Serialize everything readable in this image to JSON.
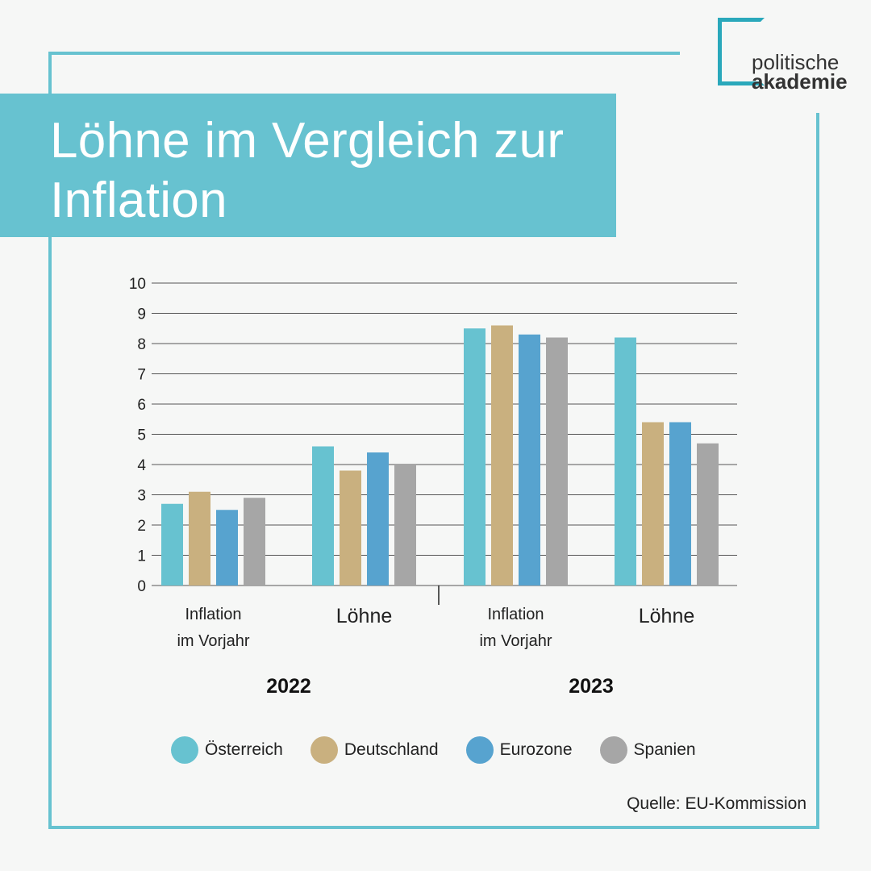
{
  "title": "Löhne im Vergleich zur Inflation",
  "logo": {
    "line1": "politische",
    "line2": "akademie"
  },
  "source": "Quelle: EU-Kommission",
  "colors": {
    "accent": "#67c2d0",
    "Österreich": "#67c2d0",
    "Deutschland": "#c9b07f",
    "Eurozone": "#57a3cf",
    "Spanien": "#a6a6a6"
  },
  "chart_data": {
    "type": "bar",
    "title": "Löhne im Vergleich zur Inflation",
    "xlabel": "",
    "ylabel": "",
    "ylim": [
      0,
      10
    ],
    "yticks": [
      0,
      1,
      2,
      3,
      4,
      5,
      6,
      7,
      8,
      9,
      10
    ],
    "grid": true,
    "legend_position": "bottom",
    "groups": [
      "2022",
      "2023"
    ],
    "categories": [
      {
        "label_lines": [
          "Inflation",
          "im Vorjahr"
        ],
        "year": "2022"
      },
      {
        "label_lines": [
          "Löhne"
        ],
        "year": "2022"
      },
      {
        "label_lines": [
          "Inflation",
          "im Vorjahr"
        ],
        "year": "2023"
      },
      {
        "label_lines": [
          "Löhne"
        ],
        "year": "2023"
      }
    ],
    "series": [
      {
        "name": "Österreich",
        "color": "#67c2d0",
        "values": [
          2.7,
          4.6,
          8.5,
          8.2
        ]
      },
      {
        "name": "Deutschland",
        "color": "#c9b07f",
        "values": [
          3.1,
          3.8,
          8.6,
          5.4
        ]
      },
      {
        "name": "Eurozone",
        "color": "#57a3cf",
        "values": [
          2.5,
          4.4,
          8.3,
          5.4
        ]
      },
      {
        "name": "Spanien",
        "color": "#a6a6a6",
        "values": [
          2.9,
          4.0,
          8.2,
          4.7
        ]
      }
    ]
  }
}
